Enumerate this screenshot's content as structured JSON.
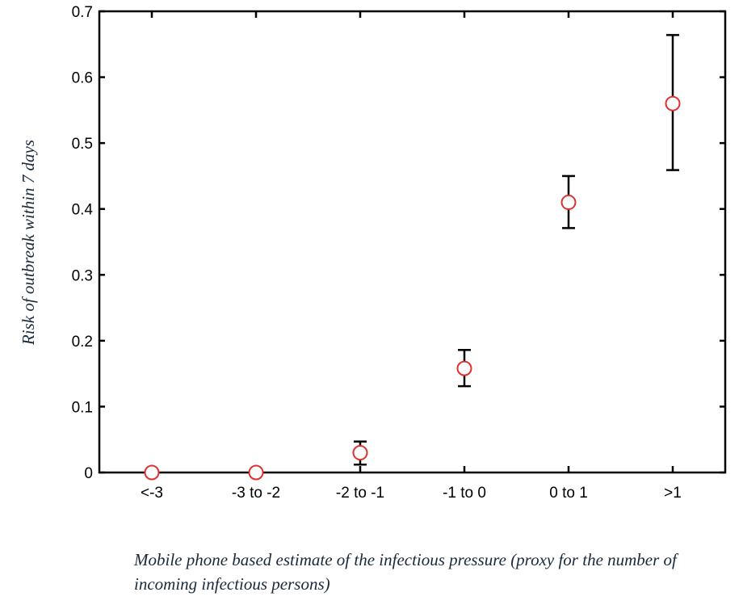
{
  "chart_data": {
    "type": "scatter",
    "title": "",
    "xlabel": "Mobile phone based estimate of  the infectious pressure (proxy for the number of  incoming infectious persons)",
    "ylabel": "Risk of  outbreak within 7 days",
    "categories": [
      "<-3",
      "-3 to -2",
      "-2 to -1",
      "-1 to 0",
      "0 to 1",
      ">1"
    ],
    "values": [
      0,
      0,
      0.03,
      0.158,
      0.41,
      0.56
    ],
    "error_low": [
      null,
      null,
      0.012,
      0.131,
      0.371,
      0.459
    ],
    "error_high": [
      null,
      null,
      0.047,
      0.186,
      0.45,
      0.664
    ],
    "ylim": [
      0,
      0.7
    ],
    "yticks": [
      "0",
      "0.1",
      "0.2",
      "0.3",
      "0.4",
      "0.5",
      "0.6",
      "0.7"
    ],
    "grid": false,
    "legend": "none",
    "colors": {
      "marker": "#e03030",
      "errorbar": "#000000",
      "axis": "#000000"
    }
  }
}
